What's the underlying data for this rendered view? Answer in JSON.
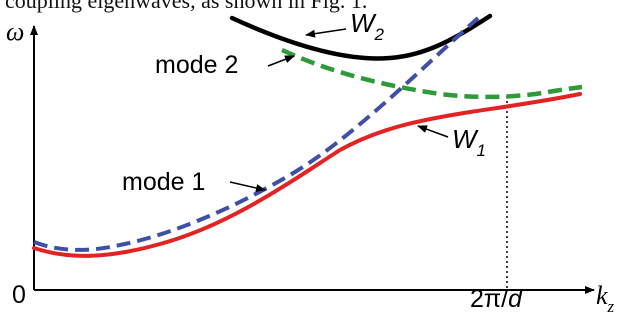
{
  "caption_fragment": "coupling eigenwaves, as shown in Fig. 1.",
  "axes": {
    "y_symbol": "ω",
    "x_symbol": "k",
    "x_symbol_sub": "z",
    "origin_label": "0",
    "x_tick_label_num": "2π/",
    "x_tick_label_d": "d"
  },
  "curves": {
    "mode1": {
      "label": "mode 1",
      "color": "#3f4fa8",
      "style": "dashed"
    },
    "mode2": {
      "label": "mode 2",
      "color": "#2e9a3a",
      "style": "dashed"
    },
    "w1": {
      "label": "W",
      "sub": "1",
      "color": "#e32222",
      "style": "solid"
    },
    "w2": {
      "label": "W",
      "sub": "2",
      "color": "#000000",
      "style": "solid"
    }
  }
}
